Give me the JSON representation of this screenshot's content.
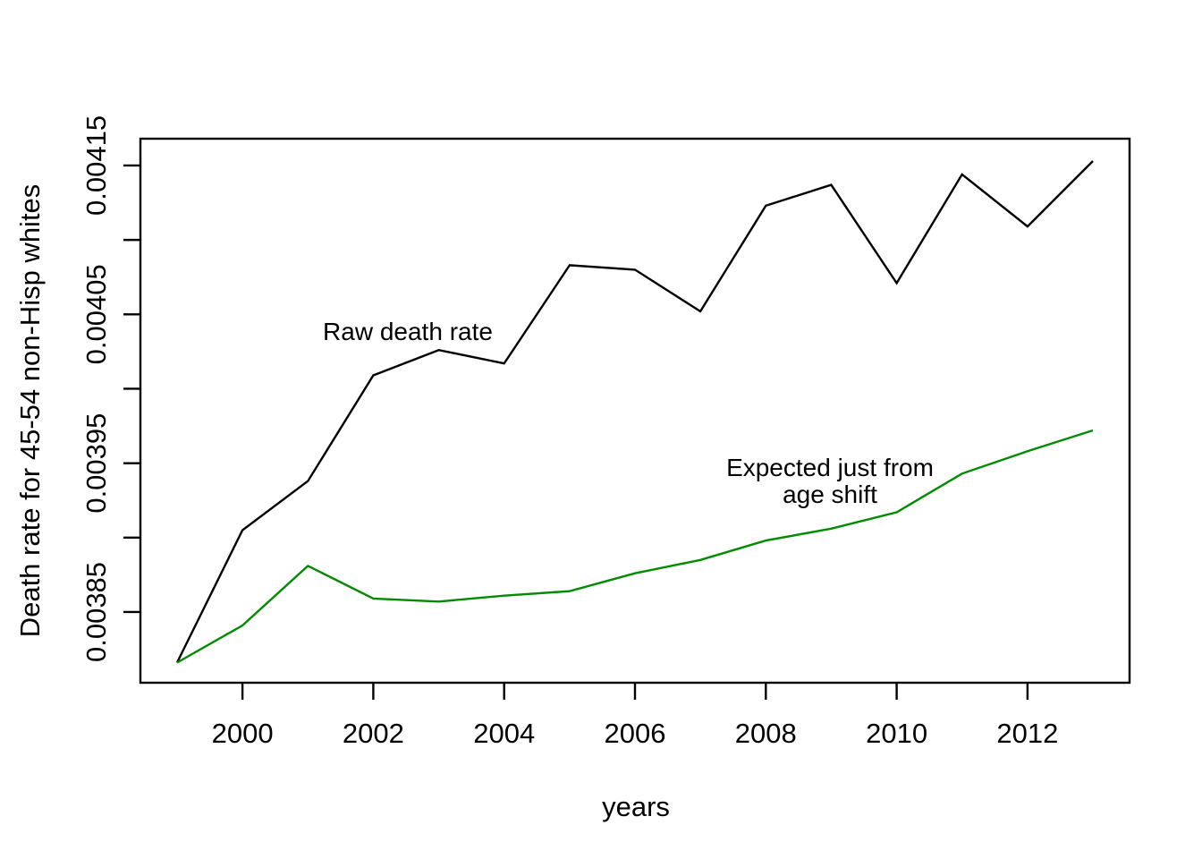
{
  "chart_data": {
    "type": "line",
    "title": "",
    "xlabel": "years",
    "ylabel": "Death rate for 45-54 non-Hisp whites",
    "x": [
      1999,
      2000,
      2001,
      2002,
      2003,
      2004,
      2005,
      2006,
      2007,
      2008,
      2009,
      2010,
      2011,
      2012,
      2013
    ],
    "series": [
      {
        "name": "Raw death rate",
        "color": "#000000",
        "values": [
          0.003816,
          0.003905,
          0.003938,
          0.004009,
          0.004026,
          0.004017,
          0.004083,
          0.00408,
          0.004052,
          0.004123,
          0.004137,
          0.004071,
          0.004144,
          0.004109,
          0.004153
        ]
      },
      {
        "name": "Expected just from age shift",
        "color": "#008B00",
        "values": [
          0.003816,
          0.003841,
          0.003881,
          0.003859,
          0.003857,
          0.003861,
          0.003864,
          0.003876,
          0.003885,
          0.003898,
          0.003906,
          0.003917,
          0.003943,
          0.003958,
          0.003972
        ]
      }
    ],
    "annotations": {
      "raw": {
        "text": "Raw death rate",
        "color": "#000000"
      },
      "expected": {
        "line1": "Expected just from",
        "line2": "age shift",
        "color": "#008B00"
      }
    },
    "x_ticks": {
      "values": [
        2000,
        2002,
        2004,
        2006,
        2008,
        2010,
        2012
      ],
      "labels": [
        "2000",
        "2002",
        "2004",
        "2006",
        "2008",
        "2010",
        "2012"
      ]
    },
    "y_ticks": {
      "values": [
        0.00415,
        0.0041,
        0.00405,
        0.004,
        0.00395,
        0.0039,
        0.00385
      ],
      "labels": [
        "0.00415",
        "",
        "0.00405",
        "",
        "0.00395",
        "",
        "0.00385"
      ]
    },
    "xlim": [
      1998.44,
      2013.56
    ],
    "ylim": [
      0.0038025,
      0.004168
    ],
    "grid": false,
    "legend": "inline-annotations",
    "frame_color": "#000000",
    "background_color": "#ffffff"
  }
}
